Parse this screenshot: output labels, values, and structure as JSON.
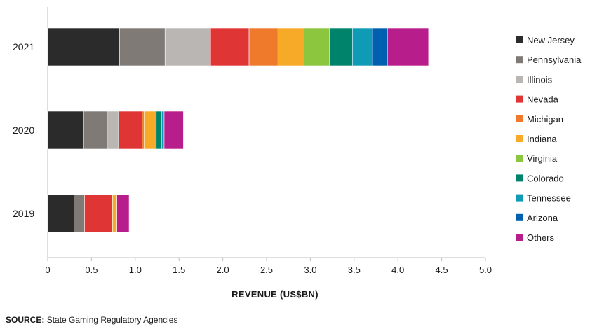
{
  "chart_data": {
    "type": "bar",
    "orientation": "horizontal",
    "stacked": true,
    "categories": [
      "2021",
      "2020",
      "2019"
    ],
    "series": [
      {
        "name": "New Jersey",
        "color": "#2b2b2b",
        "values": [
          0.82,
          0.41,
          0.3
        ]
      },
      {
        "name": "Pennsylvania",
        "color": "#7f7a76",
        "values": [
          0.52,
          0.27,
          0.12
        ]
      },
      {
        "name": "Illinois",
        "color": "#b9b6b3",
        "values": [
          0.52,
          0.13,
          0.0
        ]
      },
      {
        "name": "Nevada",
        "color": "#e03535",
        "values": [
          0.44,
          0.27,
          0.32
        ]
      },
      {
        "name": "Michigan",
        "color": "#f07a2c",
        "values": [
          0.33,
          0.02,
          0.0
        ]
      },
      {
        "name": "Indiana",
        "color": "#f7a928",
        "values": [
          0.3,
          0.14,
          0.05
        ]
      },
      {
        "name": "Virginia",
        "color": "#8cc63f",
        "values": [
          0.29,
          0.0,
          0.0
        ]
      },
      {
        "name": "Colorado",
        "color": "#00836b",
        "values": [
          0.26,
          0.06,
          0.0
        ]
      },
      {
        "name": "Tennessee",
        "color": "#0f9bb5",
        "values": [
          0.23,
          0.03,
          0.0
        ]
      },
      {
        "name": "Arizona",
        "color": "#0060b0",
        "values": [
          0.17,
          0.0,
          0.0
        ]
      },
      {
        "name": "Others",
        "color": "#b81d8c",
        "values": [
          0.47,
          0.22,
          0.14
        ]
      }
    ],
    "xlabel": "REVENUE (US$BN)",
    "ylabel": "",
    "xlim": [
      0,
      5.0
    ],
    "xticks": [
      "0",
      "0.5",
      "1.0",
      "1.5",
      "2.0",
      "2.5",
      "3.0",
      "3.5",
      "4.0",
      "4.5",
      "5.0"
    ],
    "grid": false,
    "legend_position": "right"
  },
  "source": {
    "label": "SOURCE:",
    "text": "State Gaming Regulatory Agencies"
  }
}
